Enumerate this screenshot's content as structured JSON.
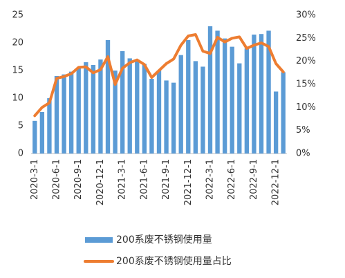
{
  "chart_data": {
    "type": "bar_line",
    "categories": [
      "2020-3-1",
      null,
      null,
      "2020-6-1",
      null,
      null,
      "2020-9-1",
      null,
      null,
      "2020-12-1",
      null,
      null,
      "2021-3-1",
      null,
      null,
      "2021-6-1",
      null,
      null,
      "2021-9-1",
      null,
      null,
      "2021-12-1",
      null,
      null,
      "2022-3-1",
      null,
      null,
      "2022-6-1",
      null,
      null,
      "2022-9-1",
      null,
      null,
      "2022-12-1",
      null
    ],
    "series": [
      {
        "name": "200系废不锈钢使用量",
        "type": "bar",
        "color": "#5b9bd5",
        "values": [
          5.9,
          7.5,
          10,
          14,
          14.3,
          14.8,
          15.5,
          16.5,
          16,
          17,
          20.5,
          15,
          18.5,
          17.2,
          17,
          16.2,
          13.5,
          15,
          13.2,
          12.8,
          17.8,
          20.5,
          16.7,
          15.7,
          23,
          22.2,
          20.8,
          19.3,
          16.3,
          19,
          21.5,
          21.6,
          22.2,
          11.2,
          14.7
        ]
      },
      {
        "name": "200系废不锈钢使用量占比",
        "type": "line",
        "axis": "y2",
        "color": "#ed7d31",
        "values": [
          8.2,
          10,
          11,
          16.3,
          16.7,
          17.3,
          18.7,
          18.8,
          17.5,
          18.2,
          21,
          15,
          18.5,
          19.7,
          20.3,
          19.3,
          16.5,
          18,
          19.5,
          20.5,
          23.5,
          25.5,
          25.8,
          22.2,
          21.7,
          25.2,
          24.2,
          25,
          25.3,
          22.8,
          23.5,
          24,
          23.2,
          19.5,
          17.7
        ]
      }
    ],
    "ylim": [
      0,
      25
    ],
    "yticks": [
      0,
      5,
      10,
      15,
      20,
      25
    ],
    "y2lim": [
      0,
      30
    ],
    "y2ticks": [
      {
        "value": 0,
        "label": "0%"
      },
      {
        "value": 5,
        "label": "5%"
      },
      {
        "value": 10,
        "label": "10%"
      },
      {
        "value": 15,
        "label": "15%"
      },
      {
        "value": 20,
        "label": "20%"
      },
      {
        "value": 25,
        "label": "25%"
      },
      {
        "value": 30,
        "label": "30%"
      }
    ],
    "grid": false,
    "legend": "bottom"
  }
}
